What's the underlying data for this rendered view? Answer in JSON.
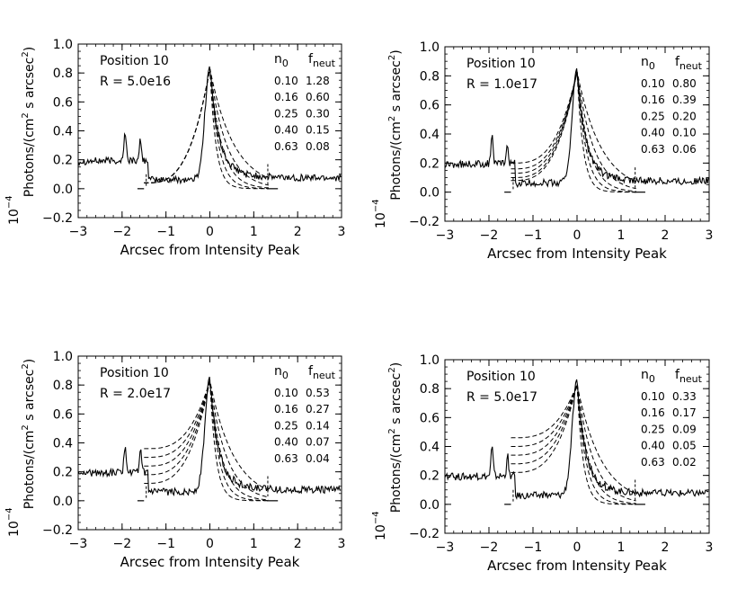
{
  "chart_data": [
    {
      "type": "line",
      "title": "Position 10",
      "annotation": "R = 5.0e16",
      "xlabel": "Arcsec from Intensity Peak",
      "ylabel_main": "Photons/(cm",
      "ylabel_sq": "2",
      "ylabel_mid": " s arcsec",
      "ylabel_sq2": "2",
      "ylabel_close": ")",
      "ylabel_power_base": "10",
      "ylabel_power_exp": "−4",
      "xlim": [
        -3,
        3
      ],
      "ylim": [
        -0.2,
        1.0
      ],
      "xticks": [
        "−3",
        "−2",
        "−1",
        "0",
        "1",
        "2",
        "3"
      ],
      "yticks": [
        "−0.2",
        "0.0",
        "0.2",
        "0.4",
        "0.6",
        "0.8",
        "1.0"
      ],
      "table_header_n": "n",
      "table_header_n_sub": "0",
      "table_header_f": "f",
      "table_header_f_sub": "neut",
      "table_rows": [
        {
          "n0": "0.10",
          "fneut": "1.28"
        },
        {
          "n0": "0.16",
          "fneut": "0.60"
        },
        {
          "n0": "0.25",
          "fneut": "0.30"
        },
        {
          "n0": "0.40",
          "fneut": "0.15"
        },
        {
          "n0": "0.63",
          "fneut": "0.08"
        }
      ],
      "model_rise_levels": [
        0.04,
        0.04,
        0.04,
        0.04,
        0.04
      ],
      "model_tail_widths": [
        0.55,
        0.38,
        0.27,
        0.2,
        0.14
      ]
    },
    {
      "type": "line",
      "title": "Position 10",
      "annotation": "R = 1.0e17",
      "xlabel": "Arcsec from Intensity Peak",
      "ylabel_main": "Photons/(cm",
      "ylabel_sq": "2",
      "ylabel_mid": " s arcsec",
      "ylabel_sq2": "2",
      "ylabel_close": ")",
      "ylabel_power_base": "10",
      "ylabel_power_exp": "−4",
      "xlim": [
        -3,
        3
      ],
      "ylim": [
        -0.2,
        1.0
      ],
      "xticks": [
        "−3",
        "−2",
        "−1",
        "0",
        "1",
        "2",
        "3"
      ],
      "yticks": [
        "−0.2",
        "0.0",
        "0.2",
        "0.4",
        "0.6",
        "0.8",
        "1.0"
      ],
      "table_header_n": "n",
      "table_header_n_sub": "0",
      "table_header_f": "f",
      "table_header_f_sub": "neut",
      "table_rows": [
        {
          "n0": "0.10",
          "fneut": "0.80"
        },
        {
          "n0": "0.16",
          "fneut": "0.39"
        },
        {
          "n0": "0.25",
          "fneut": "0.20"
        },
        {
          "n0": "0.40",
          "fneut": "0.10"
        },
        {
          "n0": "0.63",
          "fneut": "0.06"
        }
      ],
      "model_rise_levels": [
        0.2,
        0.16,
        0.13,
        0.1,
        0.08
      ],
      "model_tail_widths": [
        0.55,
        0.38,
        0.27,
        0.2,
        0.14
      ]
    },
    {
      "type": "line",
      "title": "Position 10",
      "annotation": "R = 2.0e17",
      "xlabel": "Arcsec from Intensity Peak",
      "ylabel_main": "Photons/(cm",
      "ylabel_sq": "2",
      "ylabel_mid": " s arcsec",
      "ylabel_sq2": "2",
      "ylabel_close": ")",
      "ylabel_power_base": "10",
      "ylabel_power_exp": "−4",
      "xlim": [
        -3,
        3
      ],
      "ylim": [
        -0.2,
        1.0
      ],
      "xticks": [
        "−3",
        "−2",
        "−1",
        "0",
        "1",
        "2",
        "3"
      ],
      "yticks": [
        "−0.2",
        "0.0",
        "0.2",
        "0.4",
        "0.6",
        "0.8",
        "1.0"
      ],
      "table_header_n": "n",
      "table_header_n_sub": "0",
      "table_header_f": "f",
      "table_header_f_sub": "neut",
      "table_rows": [
        {
          "n0": "0.10",
          "fneut": "0.53"
        },
        {
          "n0": "0.16",
          "fneut": "0.27"
        },
        {
          "n0": "0.25",
          "fneut": "0.14"
        },
        {
          "n0": "0.40",
          "fneut": "0.07"
        },
        {
          "n0": "0.63",
          "fneut": "0.04"
        }
      ],
      "model_rise_levels": [
        0.36,
        0.3,
        0.24,
        0.18,
        0.12
      ],
      "model_tail_widths": [
        0.55,
        0.38,
        0.27,
        0.2,
        0.14
      ]
    },
    {
      "type": "line",
      "title": "Position 10",
      "annotation": "R = 5.0e17",
      "xlabel": "Arcsec from Intensity Peak",
      "ylabel_main": "Photons/(cm",
      "ylabel_sq": "2",
      "ylabel_mid": " s arcsec",
      "ylabel_sq2": "2",
      "ylabel_close": ")",
      "ylabel_power_base": "10",
      "ylabel_power_exp": "−4",
      "xlim": [
        -3,
        3
      ],
      "ylim": [
        -0.2,
        1.0
      ],
      "xticks": [
        "−3",
        "−2",
        "−1",
        "0",
        "1",
        "2",
        "3"
      ],
      "yticks": [
        "−0.2",
        "0.0",
        "0.2",
        "0.4",
        "0.6",
        "0.8",
        "1.0"
      ],
      "table_header_n": "n",
      "table_header_n_sub": "0",
      "table_header_f": "f",
      "table_header_f_sub": "neut",
      "table_rows": [
        {
          "n0": "0.10",
          "fneut": "0.33"
        },
        {
          "n0": "0.16",
          "fneut": "0.17"
        },
        {
          "n0": "0.25",
          "fneut": "0.09"
        },
        {
          "n0": "0.40",
          "fneut": "0.05"
        },
        {
          "n0": "0.63",
          "fneut": "0.02"
        }
      ],
      "model_rise_levels": [
        0.46,
        0.4,
        0.34,
        0.28,
        0.22
      ],
      "model_tail_widths": [
        0.55,
        0.38,
        0.27,
        0.2,
        0.14
      ]
    }
  ]
}
